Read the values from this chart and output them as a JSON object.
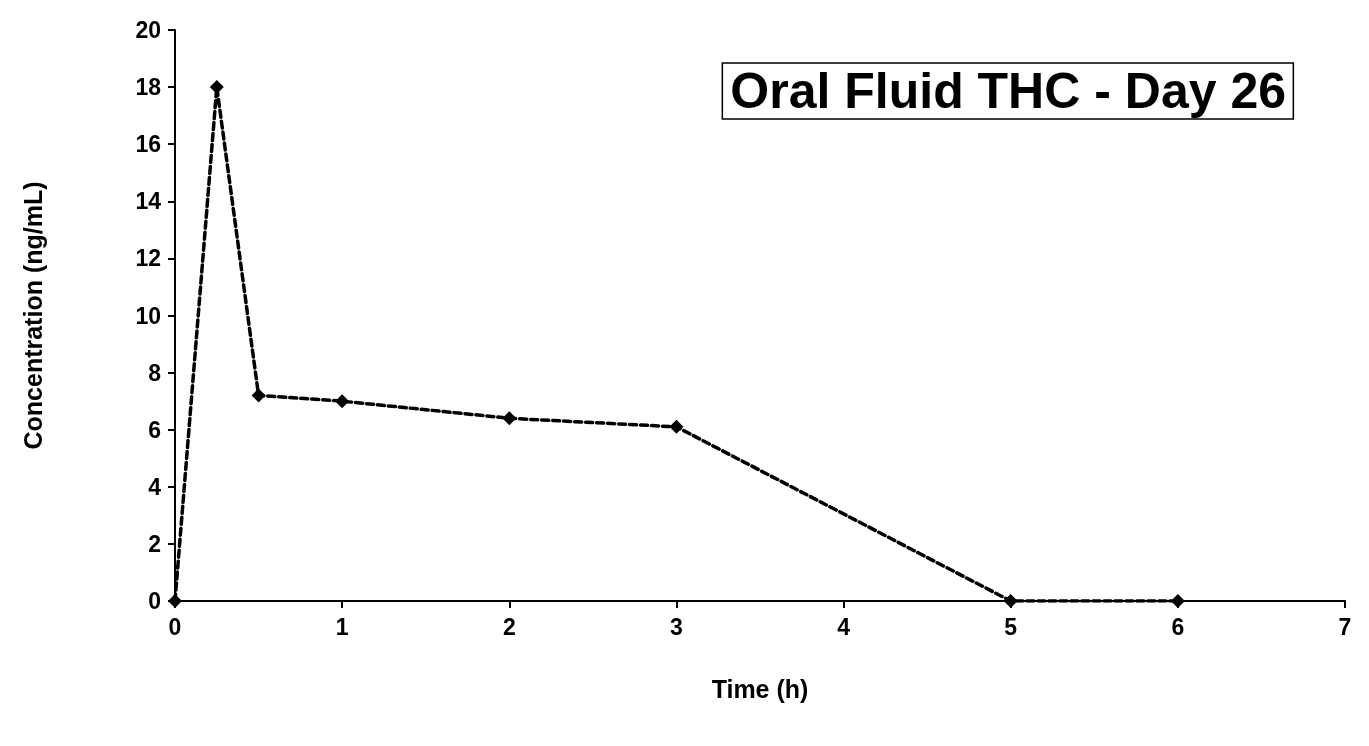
{
  "chart_data": {
    "type": "line",
    "title": "Oral Fluid THC - Day 26",
    "xlabel": "Time (h)",
    "ylabel": "Concentration (ng/mL)",
    "x": [
      0,
      0.25,
      0.5,
      1,
      2,
      3,
      5,
      6
    ],
    "series": [
      {
        "color": "#000000",
        "values": [
          0,
          18,
          7.2,
          7.0,
          6.4,
          6.1,
          0,
          0
        ]
      }
    ],
    "xlim": [
      0,
      7
    ],
    "xticks": [
      0,
      1,
      2,
      3,
      4,
      5,
      6,
      7
    ],
    "ylim": [
      0,
      20
    ],
    "yticks": [
      0,
      2,
      4,
      6,
      8,
      10,
      12,
      14,
      16,
      18,
      20
    ],
    "grid": false,
    "marker": "diamond",
    "line_style": "dashed"
  }
}
